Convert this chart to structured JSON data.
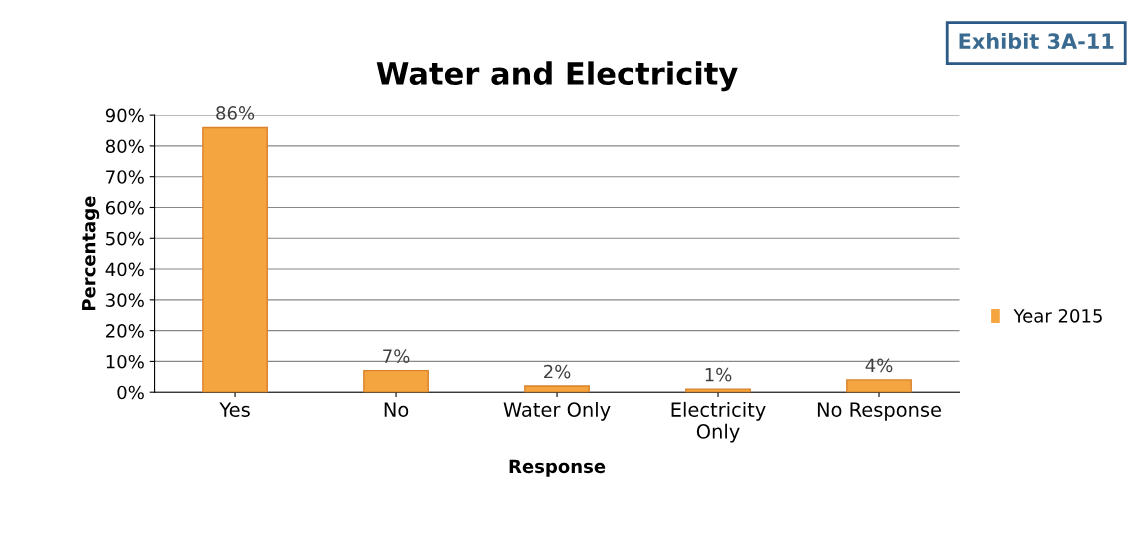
{
  "chart_data": {
    "type": "bar",
    "title": "Water and Electricity",
    "xlabel": "Response",
    "ylabel": "Percentage",
    "categories": [
      "Yes",
      "No",
      "Water Only",
      "Electricity\nOnly",
      "No Response"
    ],
    "series": [
      {
        "name": "Year 2015",
        "color": "#f5a53f",
        "values": [
          86,
          7,
          2,
          1,
          4
        ],
        "value_labels": [
          "86%",
          "7%",
          "2%",
          "1%",
          "4%"
        ]
      }
    ],
    "ylim": [
      0,
      90
    ],
    "yticks": [
      {
        "value": 0,
        "label": "0%"
      },
      {
        "value": 10,
        "label": "10%"
      },
      {
        "value": 20,
        "label": "20%"
      },
      {
        "value": 30,
        "label": "30%"
      },
      {
        "value": 40,
        "label": "40%"
      },
      {
        "value": 50,
        "label": "50%"
      },
      {
        "value": 60,
        "label": "60%"
      },
      {
        "value": 70,
        "label": "70%"
      },
      {
        "value": 80,
        "label": "80%"
      },
      {
        "value": 90,
        "label": "90%"
      }
    ],
    "grid": "y",
    "legend": "right",
    "annotations": [
      "Exhibit 3A-11"
    ]
  }
}
